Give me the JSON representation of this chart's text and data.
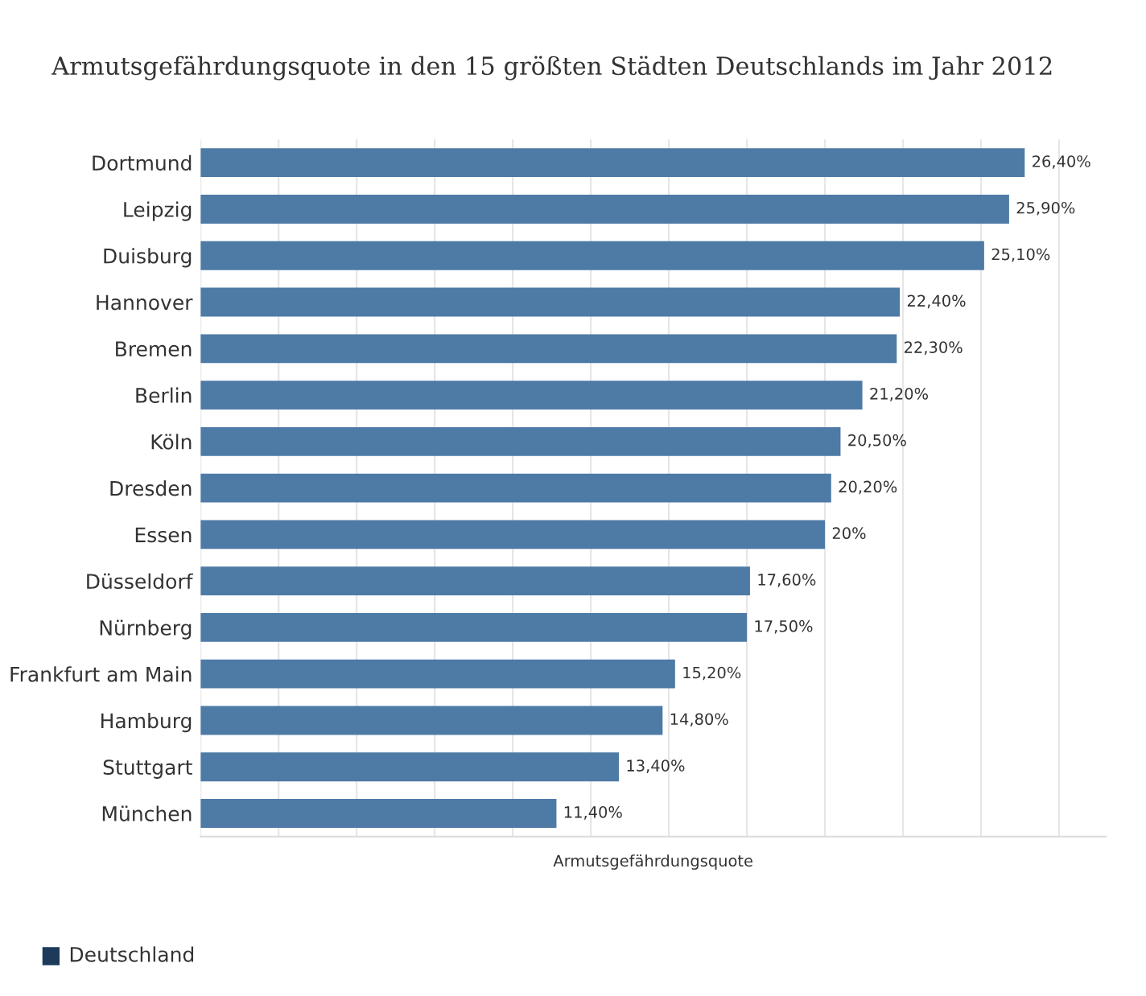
{
  "chart_data": {
    "type": "bar",
    "orientation": "horizontal",
    "title": "Armutsgefährdungsquote in den 15 größten Städten Deutschlands im Jahr 2012",
    "xlabel": "Armutsgefährdungsquote",
    "categories": [
      "Dortmund",
      "Leipzig",
      "Duisburg",
      "Hannover",
      "Bremen",
      "Berlin",
      "Köln",
      "Dresden",
      "Essen",
      "Düsseldorf",
      "Nürnberg",
      "Frankfurt am Main",
      "Hamburg",
      "Stuttgart",
      "München"
    ],
    "values": [
      26.4,
      25.9,
      25.1,
      22.4,
      22.3,
      21.2,
      20.5,
      20.2,
      20,
      17.6,
      17.5,
      15.2,
      14.8,
      13.4,
      11.4
    ],
    "value_labels": [
      "26,40%",
      "25,90%",
      "25,10%",
      "22,40%",
      "22,30%",
      "21,20%",
      "20,50%",
      "20,20%",
      "20%",
      "17,60%",
      "17,50%",
      "15,20%",
      "14,80%",
      "13,40%",
      "11,40%"
    ],
    "color": "#4e7aa6",
    "xlim": [
      0,
      29
    ],
    "xticks": [
      {
        "value": 0,
        "label": null
      },
      {
        "value": 2.5,
        "label": null
      },
      {
        "value": 5,
        "label": null
      },
      {
        "value": 7.5,
        "label": null
      },
      {
        "value": 10,
        "label": null
      },
      {
        "value": 12.5,
        "label": null
      },
      {
        "value": 15,
        "label": null
      },
      {
        "value": 17.5,
        "label": null
      },
      {
        "value": 20,
        "label": null
      },
      {
        "value": 22.5,
        "label": null
      },
      {
        "value": 25,
        "label": null
      },
      {
        "value": 27.5,
        "label": null
      }
    ],
    "grid": "x",
    "tick_labels": "y",
    "legend": false,
    "annotations": [
      "Deutschland"
    ]
  }
}
